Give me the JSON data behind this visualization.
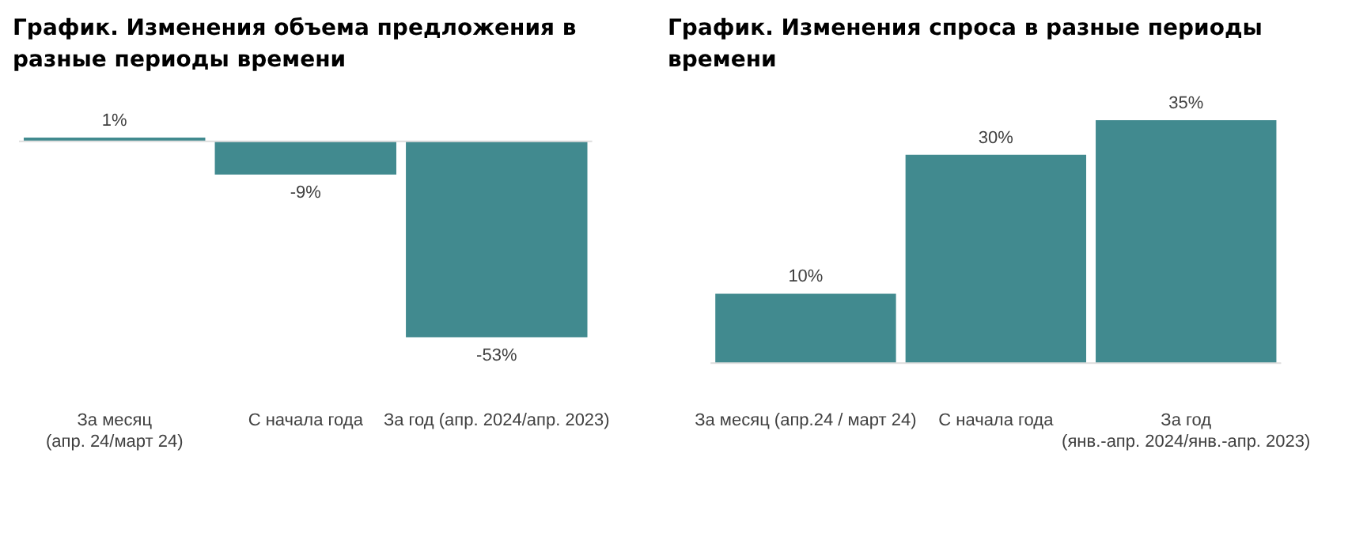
{
  "chart_data": [
    {
      "type": "bar",
      "title": "График. Изменения объема предложения в разные периоды времени",
      "categories": [
        "За месяц\n(апр. 24/март 24)",
        "С начала года",
        "За год (апр. 2024/апр. 2023)"
      ],
      "values": [
        1,
        -9,
        -53
      ],
      "value_labels": [
        "1%",
        "-9%",
        "-53%"
      ],
      "color": "#418a8f",
      "tick_labels": "x",
      "legend": false
    },
    {
      "type": "bar",
      "title": "График. Изменения спроса в разные периоды времени",
      "categories": [
        "За месяц (апр.24 / март 24)",
        "С начала года",
        "За год\n(янв.-апр. 2024/янв.-апр. 2023)"
      ],
      "values": [
        10,
        30,
        35
      ],
      "value_labels": [
        "10%",
        "30%",
        "35%"
      ],
      "color": "#418a8f",
      "tick_labels": "x",
      "legend": false
    }
  ]
}
